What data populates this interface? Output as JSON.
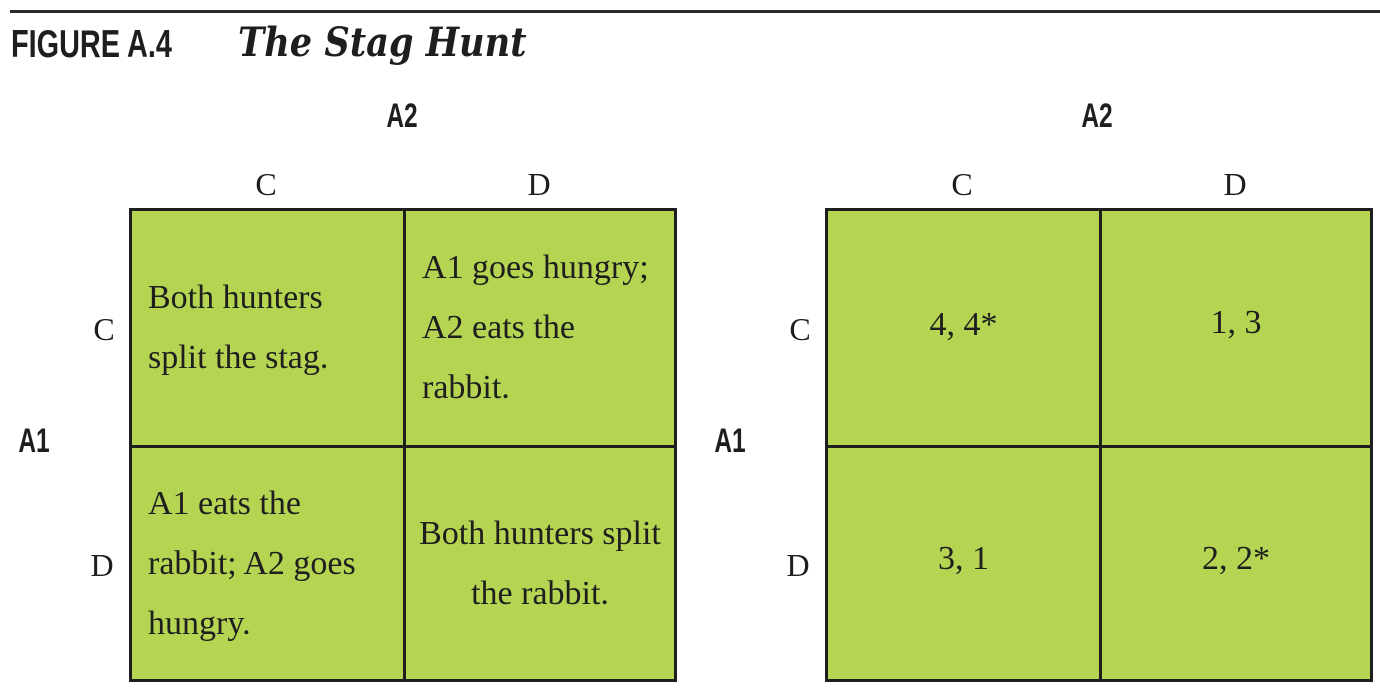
{
  "figure": {
    "label": "FIGURE A.4",
    "title": "The Stag Hunt"
  },
  "left_matrix": {
    "column_player": "A2",
    "row_player": "A1",
    "column_strategies": [
      "C",
      "D"
    ],
    "row_strategies": [
      "C",
      "D"
    ],
    "cells": {
      "cc": "Both hunters split the stag.",
      "cd": "A1 goes hungry; A2 eats the rabbit.",
      "dc": "A1 eats the rabbit; A2 goes hungry.",
      "dd": "Both hunters split the rabbit."
    }
  },
  "right_matrix": {
    "column_player": "A2",
    "row_player": "A1",
    "column_strategies": [
      "C",
      "D"
    ],
    "row_strategies": [
      "C",
      "D"
    ],
    "payoffs": {
      "cc": "4, 4*",
      "cd": "1, 3",
      "dc": "3, 1",
      "dd": "2, 2*"
    }
  },
  "colors": {
    "cell_fill": "#b5d452",
    "line": "#1e1e1e"
  }
}
